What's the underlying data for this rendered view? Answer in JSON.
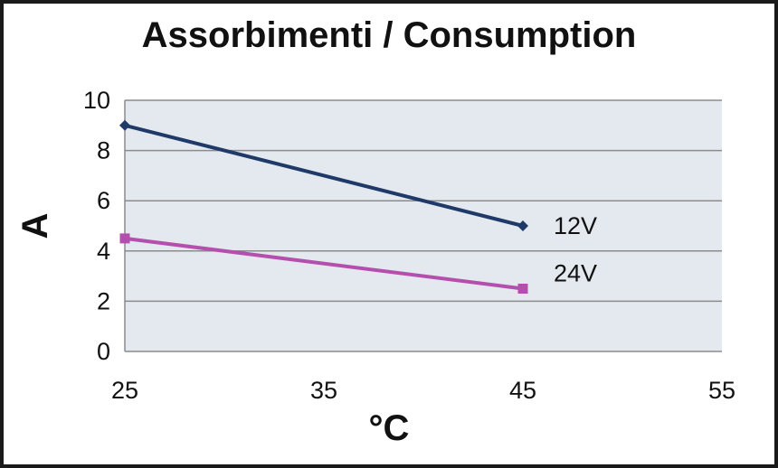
{
  "chart_data": {
    "type": "line",
    "title": "Assorbimenti / Consumption",
    "xlabel": "°C",
    "ylabel": "A",
    "xlim": [
      25,
      55
    ],
    "ylim": [
      0,
      10
    ],
    "x_ticks": [
      "25",
      "35",
      "45",
      "55"
    ],
    "y_ticks": [
      "0",
      "2",
      "4",
      "6",
      "8",
      "10"
    ],
    "grid": true,
    "plot_background": "#e3e9ef",
    "grid_color": "#8c8c8c",
    "series": [
      {
        "name": "12V",
        "x": [
          25,
          45
        ],
        "y": [
          9,
          5
        ],
        "color": "#1f3a68",
        "marker": "diamond"
      },
      {
        "name": "24V",
        "x": [
          25,
          45
        ],
        "y": [
          4.5,
          2.5
        ],
        "color": "#b54fae",
        "marker": "square"
      }
    ]
  }
}
